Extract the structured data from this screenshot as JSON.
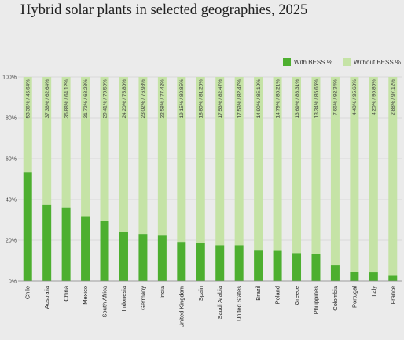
{
  "title": "Hybrid solar plants in selected geographies, 2025",
  "colors": {
    "with_bess": "#4daf2f",
    "without_bess": "#c5e3a6",
    "grid": "#d2d2d2",
    "axis": "#888888"
  },
  "chart_data": {
    "type": "bar",
    "stacked": true,
    "categories": [
      "Chile",
      "Australia",
      "China",
      "Mexico",
      "South Africa",
      "Indonesia",
      "Germany",
      "India",
      "United Kingdom",
      "Spain",
      "Saudi Arabia",
      "United States",
      "Brazil",
      "Poland",
      "Greece",
      "Philippines",
      "Colombia",
      "Portugal",
      "Italy",
      "France"
    ],
    "series": [
      {
        "name": "With BESS %",
        "values": [
          53.36,
          37.36,
          35.88,
          31.72,
          29.41,
          24.2,
          23.02,
          22.58,
          19.15,
          18.8,
          17.53,
          17.53,
          14.9,
          14.79,
          13.69,
          13.34,
          7.66,
          4.4,
          4.2,
          2.88
        ]
      },
      {
        "name": "Without BESS %",
        "values": [
          46.64,
          62.64,
          64.12,
          68.28,
          70.59,
          75.8,
          76.98,
          77.42,
          80.85,
          81.2,
          82.47,
          82.47,
          85.1,
          85.21,
          86.31,
          86.66,
          92.34,
          95.6,
          95.8,
          97.12
        ]
      }
    ],
    "bar_labels": [
      "53.36% / 46.64%",
      "37.36% / 62.64%",
      "35.88% / 64.12%",
      "31.72% / 68.28%",
      "29.41% / 70.59%",
      "24.20% / 75.80%",
      "23.02% / 76.98%",
      "22.58% / 77.42%",
      "19.15% / 80.85%",
      "18.80% / 81.20%",
      "17.53% / 82.47%",
      "17.53% / 82.47%",
      "14.90% / 85.10%",
      "14.79% / 85.21%",
      "13.69% / 86.31%",
      "13.34% / 86.66%",
      "7.66% / 92.34%",
      "4.40% / 95.60%",
      "4.20% / 95.80%",
      "2.88% / 97.12%"
    ],
    "y_ticks": [
      "0%",
      "20%",
      "40%",
      "60%",
      "80%",
      "100%"
    ],
    "ylim": [
      0,
      100
    ],
    "grid": true,
    "legend_position": "top-right"
  }
}
